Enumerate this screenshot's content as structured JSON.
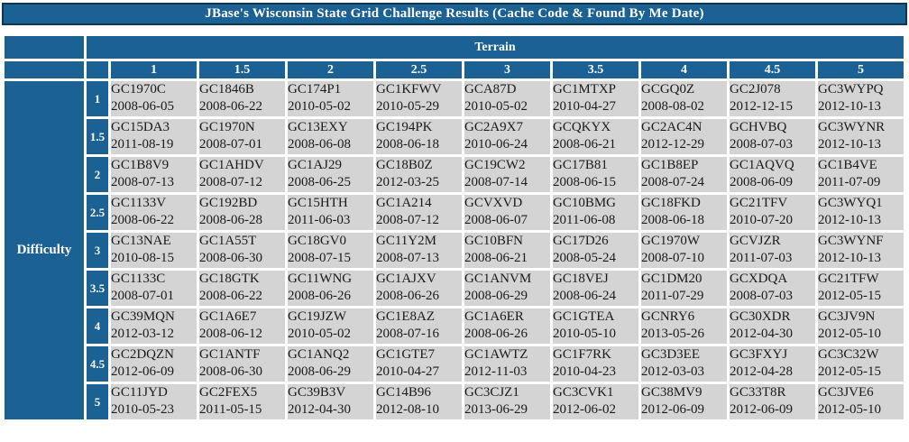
{
  "page_title": "JBase's Wisconsin State Grid Challenge Results (Cache Code & Found By Me Date)",
  "colors": {
    "header_blue": "#1c6194",
    "title_border": "#14334f",
    "cell_gray": "#d4d4d4",
    "header_text": "#ffffff",
    "cell_text": "#1a1a1a"
  },
  "chart_data": {
    "type": "table",
    "title": "JBase's Wisconsin State Grid Challenge Results (Cache Code & Found By Me Date)",
    "columns_header": "Terrain",
    "rows_header": "Difficulty",
    "terrain": [
      "1",
      "1.5",
      "2",
      "2.5",
      "3",
      "3.5",
      "4",
      "4.5",
      "5"
    ],
    "difficulty": [
      "1",
      "1.5",
      "2",
      "2.5",
      "3",
      "3.5",
      "4",
      "4.5",
      "5"
    ],
    "cells": [
      [
        {
          "code": "GC1970C",
          "found": "2008-06-05"
        },
        {
          "code": "GC1846B",
          "found": "2008-06-22"
        },
        {
          "code": "GC174P1",
          "found": "2010-05-02"
        },
        {
          "code": "GC1KFWV",
          "found": "2010-05-29"
        },
        {
          "code": "GCA87D",
          "found": "2010-05-02"
        },
        {
          "code": "GC1MTXP",
          "found": "2010-04-27"
        },
        {
          "code": "GCGQ0Z",
          "found": "2008-08-02"
        },
        {
          "code": "GC2J078",
          "found": "2012-12-15"
        },
        {
          "code": "GC3WYPQ",
          "found": "2012-10-13"
        }
      ],
      [
        {
          "code": "GC15DA3",
          "found": "2011-08-19"
        },
        {
          "code": "GC1970N",
          "found": "2008-07-01"
        },
        {
          "code": "GC13EXY",
          "found": "2008-06-08"
        },
        {
          "code": "GC194PK",
          "found": "2008-06-18"
        },
        {
          "code": "GC2A9X7",
          "found": "2010-06-24"
        },
        {
          "code": "GCQKYX",
          "found": "2008-06-21"
        },
        {
          "code": "GC2AC4N",
          "found": "2012-12-29"
        },
        {
          "code": "GCHVBQ",
          "found": "2008-07-03"
        },
        {
          "code": "GC3WYNR",
          "found": "2012-10-13"
        }
      ],
      [
        {
          "code": "GC1B8V9",
          "found": "2008-07-13"
        },
        {
          "code": "GC1AHDV",
          "found": "2008-07-12"
        },
        {
          "code": "GC1AJ29",
          "found": "2008-06-25"
        },
        {
          "code": "GC18B0Z",
          "found": "2012-03-25"
        },
        {
          "code": "GC19CW2",
          "found": "2008-07-14"
        },
        {
          "code": "GC17B81",
          "found": "2008-06-15"
        },
        {
          "code": "GC1B8EP",
          "found": "2008-07-24"
        },
        {
          "code": "GC1AQVQ",
          "found": "2008-06-09"
        },
        {
          "code": "GC1B4VE",
          "found": "2011-07-09"
        }
      ],
      [
        {
          "code": "GC1133V",
          "found": "2008-06-22"
        },
        {
          "code": "GC192BD",
          "found": "2008-06-28"
        },
        {
          "code": "GC15HTH",
          "found": "2011-06-03"
        },
        {
          "code": "GC1A214",
          "found": "2008-07-12"
        },
        {
          "code": "GCVXVD",
          "found": "2008-06-07"
        },
        {
          "code": "GC10BMG",
          "found": "2011-06-08"
        },
        {
          "code": "GC18FKD",
          "found": "2008-06-18"
        },
        {
          "code": "GC21TFV",
          "found": "2010-07-20"
        },
        {
          "code": "GC3WYQ1",
          "found": "2012-10-13"
        }
      ],
      [
        {
          "code": "GC13NAE",
          "found": "2010-08-15"
        },
        {
          "code": "GC1A55T",
          "found": "2008-06-30"
        },
        {
          "code": "GC18GV0",
          "found": "2008-07-15"
        },
        {
          "code": "GC11Y2M",
          "found": "2008-07-13"
        },
        {
          "code": "GC10BFN",
          "found": "2008-06-21"
        },
        {
          "code": "GC17D26",
          "found": "2008-05-24"
        },
        {
          "code": "GC1970W",
          "found": "2008-07-10"
        },
        {
          "code": "GCVJZR",
          "found": "2011-07-03"
        },
        {
          "code": "GC3WYNF",
          "found": "2012-10-13"
        }
      ],
      [
        {
          "code": "GC1133C",
          "found": "2008-07-01"
        },
        {
          "code": "GC18GTK",
          "found": "2008-06-22"
        },
        {
          "code": "GC11WNG",
          "found": "2008-06-26"
        },
        {
          "code": "GC1AJXV",
          "found": "2008-06-26"
        },
        {
          "code": "GC1ANVM",
          "found": "2008-06-29"
        },
        {
          "code": "GC18VEJ",
          "found": "2008-06-24"
        },
        {
          "code": "GC1DM20",
          "found": "2011-07-29"
        },
        {
          "code": "GCXDQA",
          "found": "2008-07-03"
        },
        {
          "code": "GC21TFW",
          "found": "2012-05-15"
        }
      ],
      [
        {
          "code": "GC39MQN",
          "found": "2012-03-12"
        },
        {
          "code": "GC1A6E7",
          "found": "2008-06-12"
        },
        {
          "code": "GC19JZW",
          "found": "2010-05-02"
        },
        {
          "code": "GC1E8AZ",
          "found": "2008-07-16"
        },
        {
          "code": "GC1A6ER",
          "found": "2008-06-26"
        },
        {
          "code": "GC1GTEA",
          "found": "2010-05-10"
        },
        {
          "code": "GCNRY6",
          "found": "2013-05-26"
        },
        {
          "code": "GC30XDR",
          "found": "2012-04-30"
        },
        {
          "code": "GC3JV9N",
          "found": "2012-05-10"
        }
      ],
      [
        {
          "code": "GC2DQZN",
          "found": "2012-06-09"
        },
        {
          "code": "GC1ANTF",
          "found": "2008-06-30"
        },
        {
          "code": "GC1ANQ2",
          "found": "2008-06-29"
        },
        {
          "code": "GC1GTE7",
          "found": "2010-04-27"
        },
        {
          "code": "GC1AWTZ",
          "found": "2012-11-03"
        },
        {
          "code": "GC1F7RK",
          "found": "2010-04-23"
        },
        {
          "code": "GC3D3EE",
          "found": "2012-03-03"
        },
        {
          "code": "GC3FXYJ",
          "found": "2012-04-28"
        },
        {
          "code": "GC3C32W",
          "found": "2012-05-15"
        }
      ],
      [
        {
          "code": "GC11JYD",
          "found": "2010-05-23"
        },
        {
          "code": "GC2FEX5",
          "found": "2011-05-15"
        },
        {
          "code": "GC39B3V",
          "found": "2012-04-30"
        },
        {
          "code": "GC14B96",
          "found": "2012-08-10"
        },
        {
          "code": "GC3CJZ1",
          "found": "2013-06-29"
        },
        {
          "code": "GC3CVK1",
          "found": "2012-06-02"
        },
        {
          "code": "GC38MV9",
          "found": "2012-06-09"
        },
        {
          "code": "GC33T8R",
          "found": "2012-06-09"
        },
        {
          "code": "GC3JVE6",
          "found": "2012-05-10"
        }
      ]
    ]
  }
}
